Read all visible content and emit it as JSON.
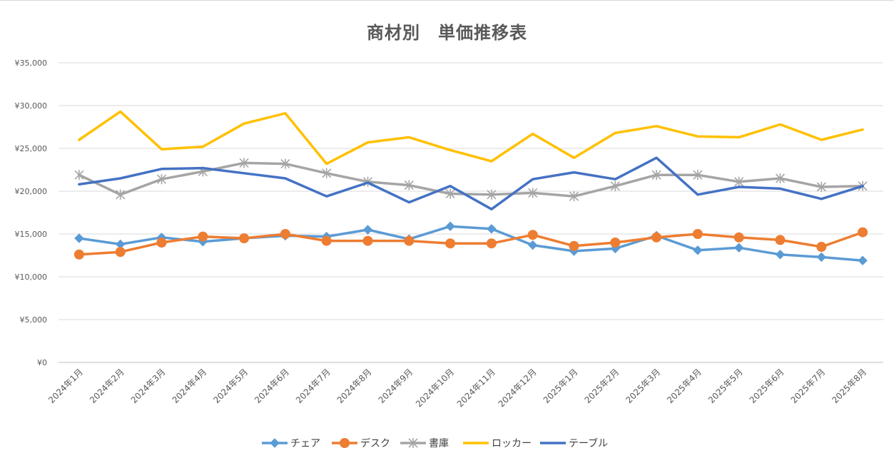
{
  "chart_data": {
    "type": "line",
    "title": "商材別　単価推移表",
    "categories": [
      "2024年1月",
      "2024年2月",
      "2024年3月",
      "2024年4月",
      "2024年5月",
      "2024年6月",
      "2024年7月",
      "2024年8月",
      "2024年9月",
      "2024年10月",
      "2024年11月",
      "2024年12月",
      "2025年1月",
      "2025年2月",
      "2025年3月",
      "2025年4月",
      "2025年5月",
      "2025年6月",
      "2025年7月",
      "2025年8月"
    ],
    "ylim": [
      0,
      35000
    ],
    "yticks": [
      0,
      5000,
      10000,
      15000,
      20000,
      25000,
      30000,
      35000
    ],
    "ytick_labels": [
      "¥0",
      "¥5,000",
      "¥10,000",
      "¥15,000",
      "¥20,000",
      "¥25,000",
      "¥30,000",
      "¥35,000"
    ],
    "grid": true,
    "legend_position": "bottom",
    "series": [
      {
        "name": "チェア",
        "color": "#5b9bd5",
        "marker": "diamond",
        "values": [
          14500,
          13800,
          14600,
          14100,
          14500,
          14800,
          14700,
          15500,
          14400,
          15900,
          15600,
          13700,
          13000,
          13300,
          14800,
          13100,
          13400,
          12600,
          12300,
          11900
        ]
      },
      {
        "name": "デスク",
        "color": "#ed7d31",
        "marker": "circle",
        "values": [
          12600,
          12900,
          14000,
          14700,
          14500,
          15000,
          14200,
          14200,
          14200,
          13900,
          13900,
          14900,
          13600,
          14000,
          14600,
          15000,
          14600,
          14300,
          13500,
          15200
        ]
      },
      {
        "name": "書庫",
        "color": "#a5a5a5",
        "marker": "asterisk",
        "values": [
          21900,
          19600,
          21400,
          22300,
          23300,
          23200,
          22100,
          21100,
          20700,
          19700,
          19600,
          19800,
          19400,
          20600,
          21900,
          21900,
          21100,
          21500,
          20500,
          20600
        ]
      },
      {
        "name": "ロッカー",
        "color": "#ffc000",
        "marker": "none",
        "values": [
          26000,
          29300,
          24900,
          25200,
          27900,
          29100,
          23200,
          25700,
          26300,
          24800,
          23500,
          26700,
          23900,
          26800,
          27600,
          26400,
          26300,
          27800,
          26000,
          27200
        ]
      },
      {
        "name": "テーブル",
        "color": "#4472c4",
        "marker": "none",
        "values": [
          20800,
          21500,
          22600,
          22700,
          22100,
          21500,
          19400,
          21000,
          18700,
          20600,
          17900,
          21400,
          22200,
          21400,
          23900,
          19600,
          20500,
          20300,
          19100,
          20600
        ]
      }
    ]
  }
}
